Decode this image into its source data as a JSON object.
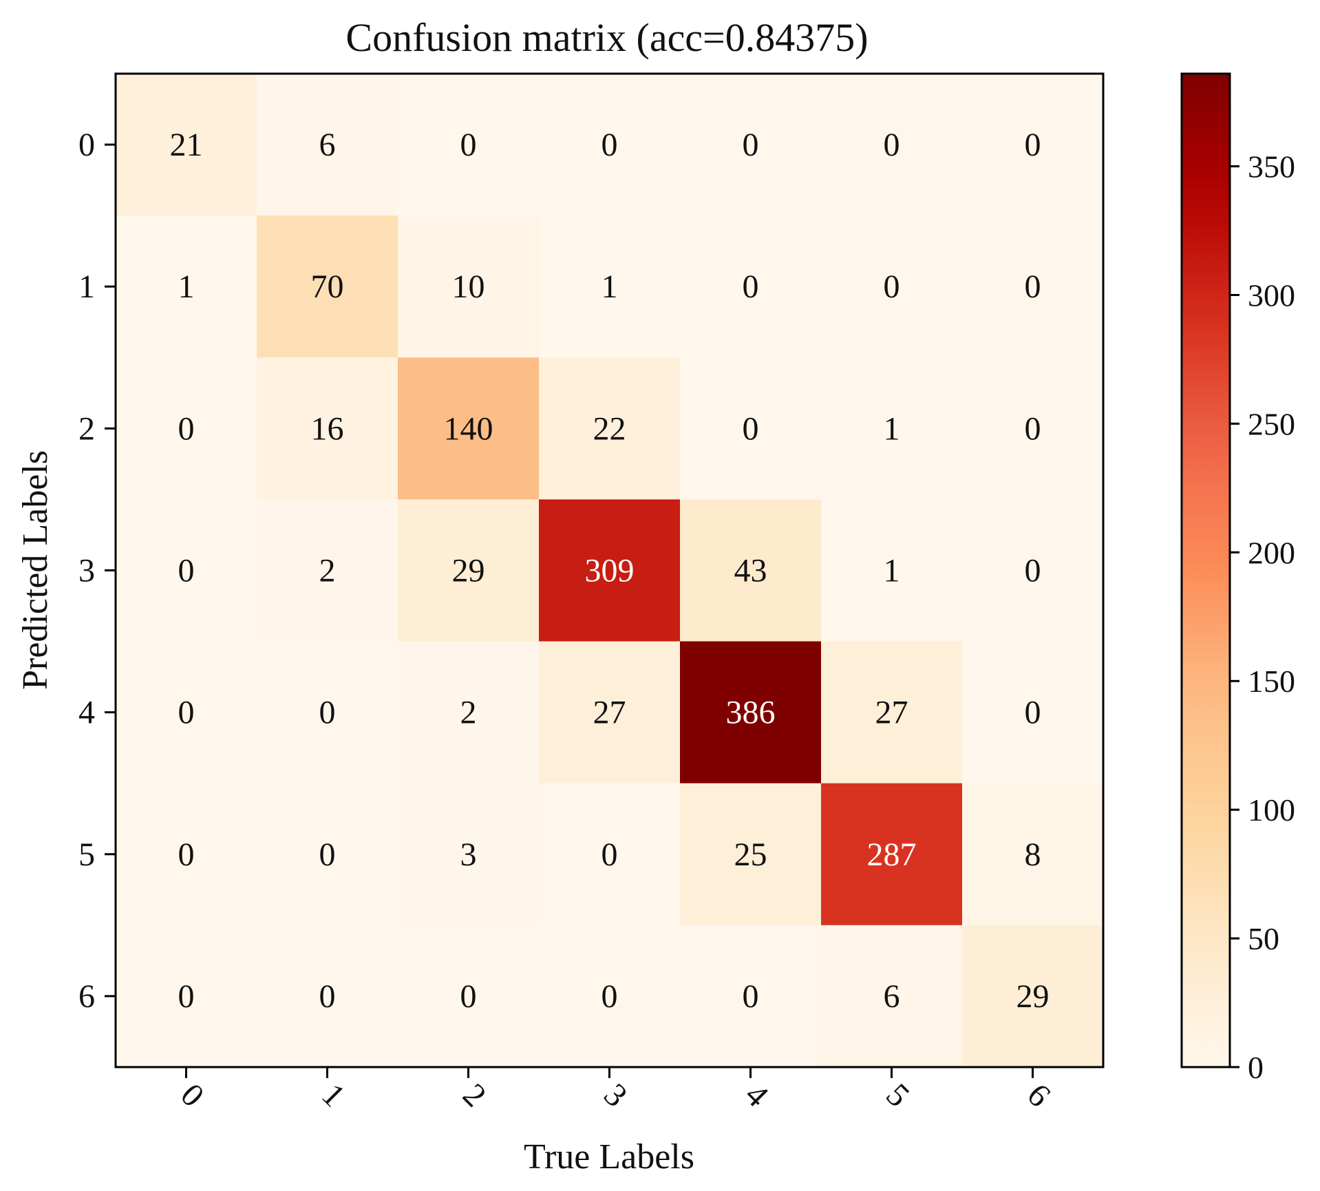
{
  "chart_data": {
    "type": "heatmap",
    "title": "Confusion matrix (acc=0.84375)",
    "xlabel": "True Labels",
    "ylabel": "Predicted Labels",
    "x_tick_labels": [
      "0",
      "1",
      "2",
      "3",
      "4",
      "5",
      "6"
    ],
    "y_tick_labels": [
      "0",
      "1",
      "2",
      "3",
      "4",
      "5",
      "6"
    ],
    "matrix": [
      [
        21,
        6,
        0,
        0,
        0,
        0,
        0
      ],
      [
        1,
        70,
        10,
        1,
        0,
        0,
        0
      ],
      [
        0,
        16,
        140,
        22,
        0,
        1,
        0
      ],
      [
        0,
        2,
        29,
        309,
        43,
        1,
        0
      ],
      [
        0,
        0,
        2,
        27,
        386,
        27,
        0
      ],
      [
        0,
        0,
        3,
        0,
        25,
        287,
        8
      ],
      [
        0,
        0,
        0,
        0,
        0,
        6,
        29
      ]
    ],
    "colormap": "OrRd",
    "colorbar": {
      "min": 0,
      "max": 386,
      "ticks": [
        0,
        50,
        100,
        150,
        200,
        250,
        300,
        350
      ],
      "tick_labels": [
        "0",
        "50",
        "100",
        "150",
        "200",
        "250",
        "300",
        "350"
      ]
    },
    "text_color_dark": "#111111",
    "text_color_light": "#ffffff"
  }
}
